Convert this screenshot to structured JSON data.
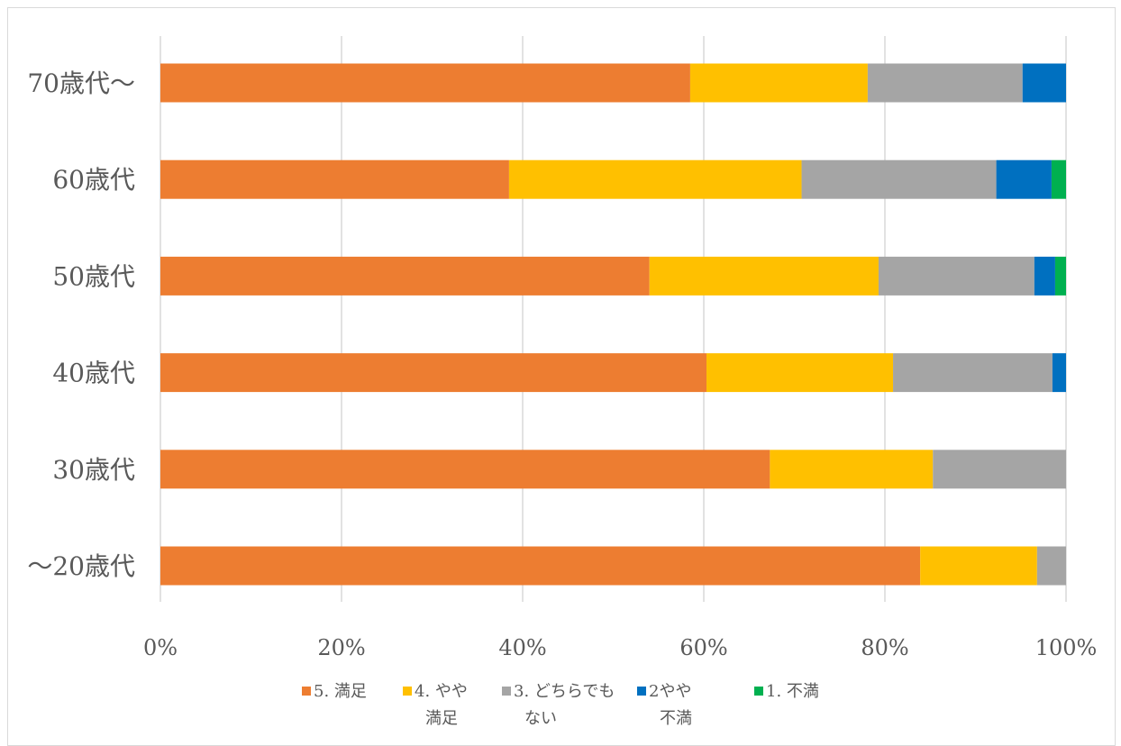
{
  "chart_data": {
    "type": "bar",
    "orientation": "horizontal",
    "stacked": "percent",
    "title": "",
    "xlabel": "",
    "ylabel": "",
    "xlim": [
      0,
      100
    ],
    "x_ticks": [
      "0%",
      "20%",
      "40%",
      "60%",
      "80%",
      "100%"
    ],
    "grid": true,
    "legend_position": "bottom",
    "categories": [
      "70歳代～",
      "60歳代",
      "50歳代",
      "40歳代",
      "30歳代",
      "～20歳代"
    ],
    "series": [
      {
        "name": "5. 満足",
        "legend_lines": [
          "5. 満足"
        ],
        "color": "#ED7D31",
        "values": [
          58.5,
          38.5,
          54.0,
          60.3,
          67.3,
          83.9
        ]
      },
      {
        "name": "4. やや満足",
        "legend_lines": [
          "4. やや",
          "満足"
        ],
        "color": "#FFC000",
        "values": [
          19.6,
          32.3,
          25.3,
          20.6,
          18.0,
          12.9
        ]
      },
      {
        "name": "3. どちらでもない",
        "legend_lines": [
          "3. どちらでも",
          "ない"
        ],
        "color": "#A5A5A5",
        "values": [
          17.1,
          21.5,
          17.2,
          17.6,
          14.7,
          3.2
        ]
      },
      {
        "name": "2やや不満",
        "legend_lines": [
          "2やや",
          "不満"
        ],
        "color": "#0070C0",
        "values": [
          4.8,
          6.1,
          2.3,
          1.5,
          0.0,
          0.0
        ]
      },
      {
        "name": "1. 不満",
        "legend_lines": [
          "1. 不満"
        ],
        "color": "#00B050",
        "values": [
          0.0,
          1.6,
          1.2,
          0.0,
          0.0,
          0.0
        ]
      }
    ]
  }
}
